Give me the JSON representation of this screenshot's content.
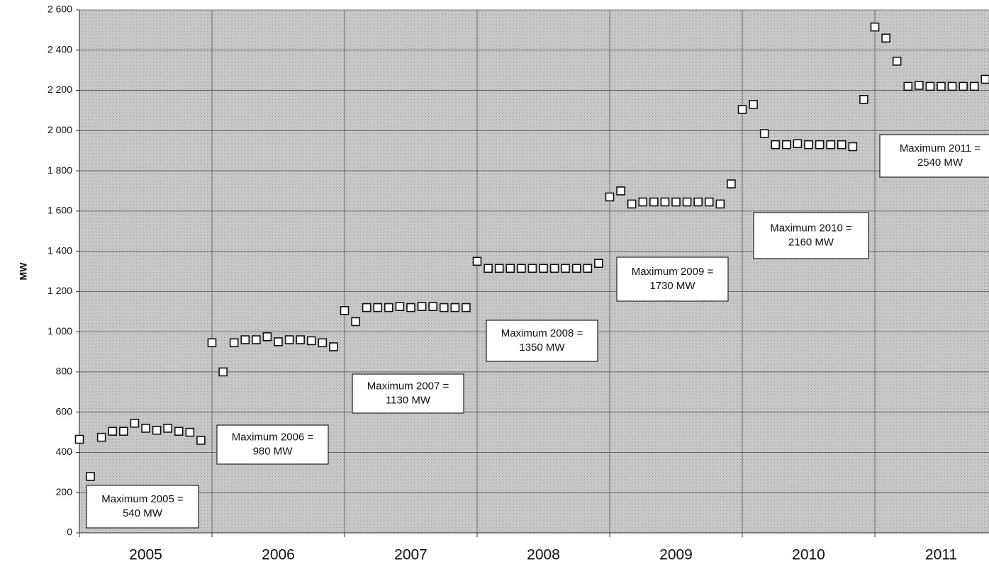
{
  "chart_data": {
    "type": "scatter",
    "y_label": "MW",
    "categories": [
      "2005",
      "2006",
      "2007",
      "2008",
      "2009",
      "2010",
      "2011"
    ],
    "values": [
      465,
      280,
      475,
      505,
      505,
      545,
      520,
      510,
      520,
      505,
      500,
      460,
      945,
      800,
      945,
      960,
      960,
      975,
      950,
      960,
      960,
      955,
      945,
      925,
      1105,
      1050,
      1120,
      1120,
      1120,
      1125,
      1120,
      1125,
      1125,
      1120,
      1120,
      1120,
      1350,
      1315,
      1315,
      1315,
      1315,
      1315,
      1315,
      1315,
      1315,
      1315,
      1315,
      1340,
      1670,
      1700,
      1635,
      1645,
      1645,
      1645,
      1645,
      1645,
      1645,
      1645,
      1635,
      1735,
      2105,
      2130,
      1985,
      1930,
      1930,
      1935,
      1930,
      1930,
      1930,
      1930,
      1920,
      2155,
      2515,
      2460,
      2345,
      2220,
      2225,
      2220,
      2220,
      2220,
      2220,
      2220,
      2255
    ],
    "marker_fill": "#ffffff",
    "marker_stroke": "#111111",
    "ylim": [
      0,
      2600
    ],
    "yticks": [
      0,
      200,
      400,
      600,
      800,
      {
        "value": 1000,
        "label": "1 000"
      },
      {
        "value": 1200,
        "label": "1 200"
      },
      {
        "value": 1400,
        "label": "1 400"
      },
      {
        "value": 1600,
        "label": "1 600"
      },
      {
        "value": 1800,
        "label": "1 800"
      },
      {
        "value": 2000,
        "label": "2 000"
      },
      {
        "value": 2200,
        "label": "2 200"
      },
      {
        "value": 2400,
        "label": "2 400"
      },
      {
        "value": 2600,
        "label": "2 600"
      }
    ],
    "grid": true,
    "annotations": [
      [
        "Maximum 2005 =",
        "540 MW"
      ],
      [
        "Maximum 2006 =",
        "980 MW"
      ],
      [
        "Maximum 2007 =",
        "1130 MW"
      ],
      [
        "Maximum 2008 =",
        "1350 MW"
      ],
      [
        "Maximum 2009 =",
        "1730 MW"
      ],
      [
        "Maximum 2010 =",
        "2160 MW"
      ],
      [
        "Maximum 2011 =",
        "2540 MW"
      ]
    ]
  }
}
